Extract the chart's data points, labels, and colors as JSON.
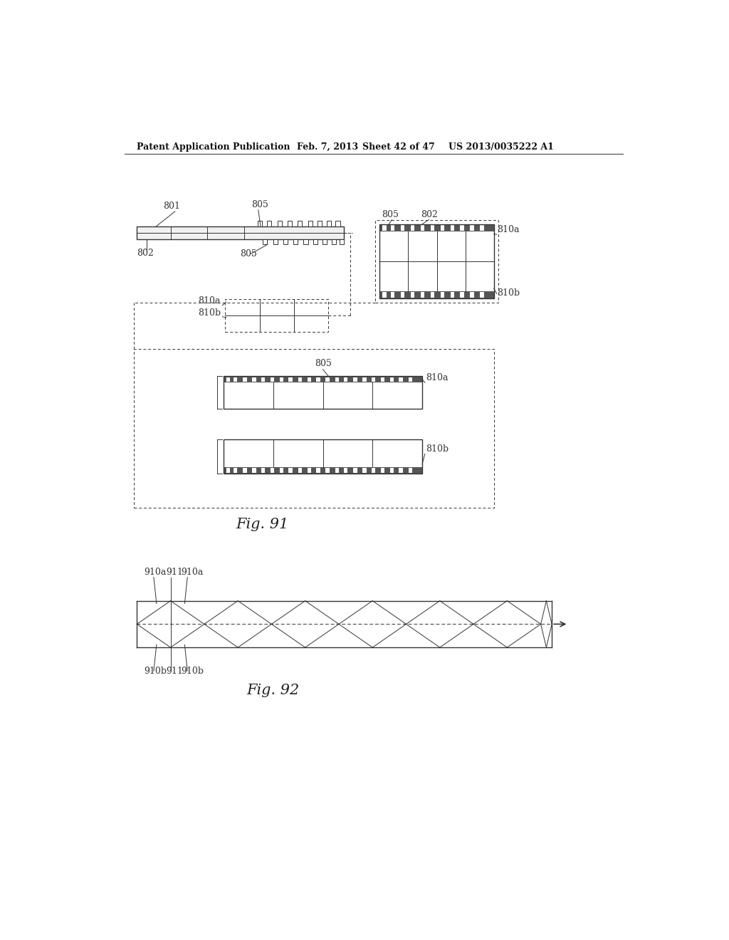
{
  "bg_color": "#ffffff",
  "header_text": "Patent Application Publication",
  "header_date": "Feb. 7, 2013",
  "header_sheet": "Sheet 42 of 47",
  "header_patent": "US 2013/0035222 A1",
  "fig91_label": "Fig. 91",
  "fig92_label": "Fig. 92",
  "color_line": "#333333",
  "color_dark_band": "#555555",
  "color_bg": "#f8f8f8"
}
